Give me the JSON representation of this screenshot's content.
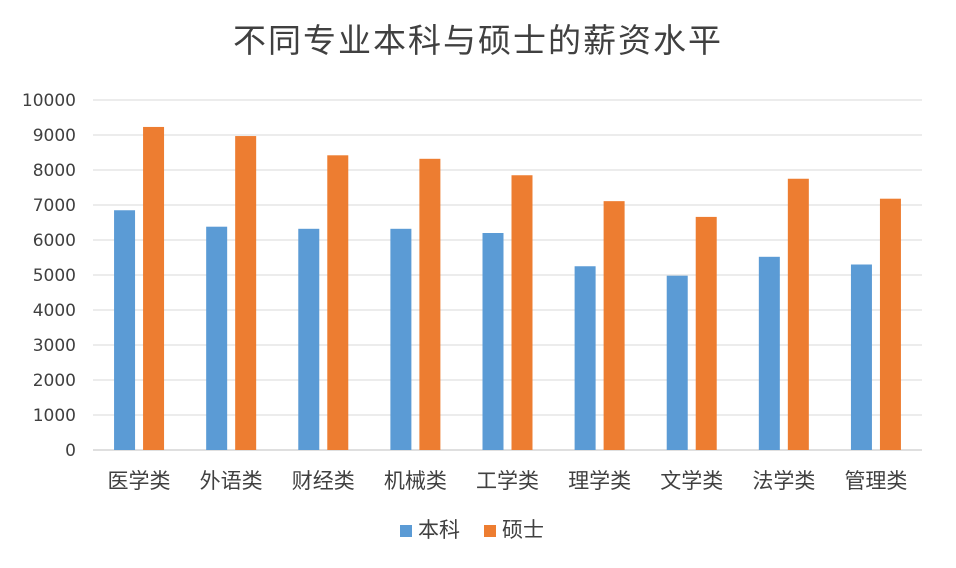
{
  "chart_data": {
    "type": "bar",
    "title": "不同专业本科与硕士的薪资水平",
    "categories": [
      "医学类",
      "外语类",
      "财经类",
      "机械类",
      "工学类",
      "理学类",
      "文学类",
      "法学类",
      "管理类"
    ],
    "series": [
      {
        "name": "本科",
        "color": "#5b9bd5",
        "values": [
          6850,
          6380,
          6320,
          6320,
          6200,
          5250,
          4980,
          5520,
          5300
        ]
      },
      {
        "name": "硕士",
        "color": "#ed7d31",
        "values": [
          9230,
          8970,
          8420,
          8320,
          7850,
          7110,
          6660,
          7750,
          7180
        ]
      }
    ],
    "ylim": [
      0,
      10000
    ],
    "yticks": [
      "0",
      "1000",
      "2000",
      "3000",
      "4000",
      "5000",
      "6000",
      "7000",
      "8000",
      "9000",
      "10000"
    ],
    "grid": true,
    "legend_position": "bottom"
  }
}
